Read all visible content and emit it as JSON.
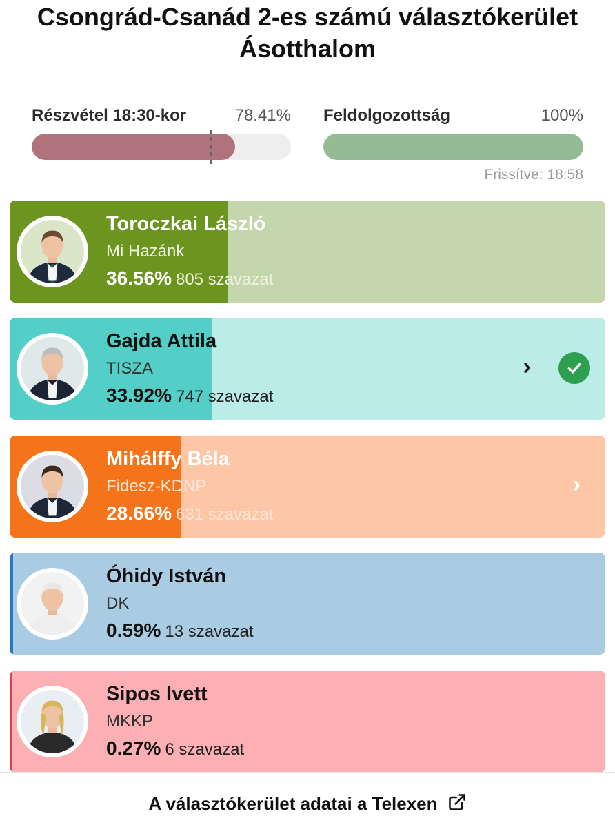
{
  "header": {
    "title_line1": "Csongrád-Csanád 2-es számú választókerület",
    "title_line2": "Ásotthalom"
  },
  "turnout": {
    "label": "Részvétel 18:30-kor",
    "value": "78.41%",
    "fill_fraction": 0.784,
    "marker_fraction": 0.69,
    "color": "#b0727b"
  },
  "processed": {
    "label": "Feldolgozottság",
    "value": "100%",
    "fill_fraction": 1.0,
    "color": "#94bb93"
  },
  "updated": "Frissítve: 18:58",
  "candidates": [
    {
      "name": "Toroczkai László",
      "party": "Mi Hazánk",
      "percent": "36.56%",
      "votes": "805 szavazat",
      "share": 0.3656,
      "bar_color": "#6b951e",
      "bg_color": "#c4d6ac",
      "text_color": "#ffffff",
      "party_color": "#eef3e3",
      "chevron": false,
      "winner": false,
      "avatar": "candidate-photo-1"
    },
    {
      "name": "Gajda Attila",
      "party": "TISZA",
      "percent": "33.92%",
      "votes": "747 szavazat",
      "share": 0.3392,
      "bar_color": "#53cfc7",
      "bg_color": "#bcece8",
      "text_color": "#111111",
      "party_color": "#333333",
      "chevron": true,
      "winner": true,
      "avatar": "candidate-photo-2"
    },
    {
      "name": "Mihálffy Béla",
      "party": "Fidesz-KDNP",
      "percent": "28.66%",
      "votes": "631 szavazat",
      "share": 0.2866,
      "bar_color": "#f57419",
      "bg_color": "#fdc6a6",
      "text_color": "#ffffff",
      "party_color": "#fde6d8",
      "chevron": true,
      "winner": false,
      "avatar": "candidate-photo-3"
    },
    {
      "name": "Óhidy István",
      "party": "DK",
      "percent": "0.59%",
      "votes": "13 szavazat",
      "share": 0.0059,
      "bar_color": "#2b78c2",
      "bg_color": "#aacce3",
      "text_color": "#111111",
      "party_color": "#333333",
      "chevron": false,
      "winner": false,
      "avatar": "candidate-photo-4"
    },
    {
      "name": "Sipos Ivett",
      "party": "MKKP",
      "percent": "0.27%",
      "votes": "6 szavazat",
      "share": 0.0027,
      "bar_color": "#e0404e",
      "bg_color": "#fcb0b4",
      "text_color": "#111111",
      "party_color": "#333333",
      "chevron": false,
      "winner": false,
      "avatar": "candidate-photo-5"
    }
  ],
  "footer": {
    "link_label": "A választókerület adatai a Telexen",
    "icon": "external-link-icon"
  }
}
